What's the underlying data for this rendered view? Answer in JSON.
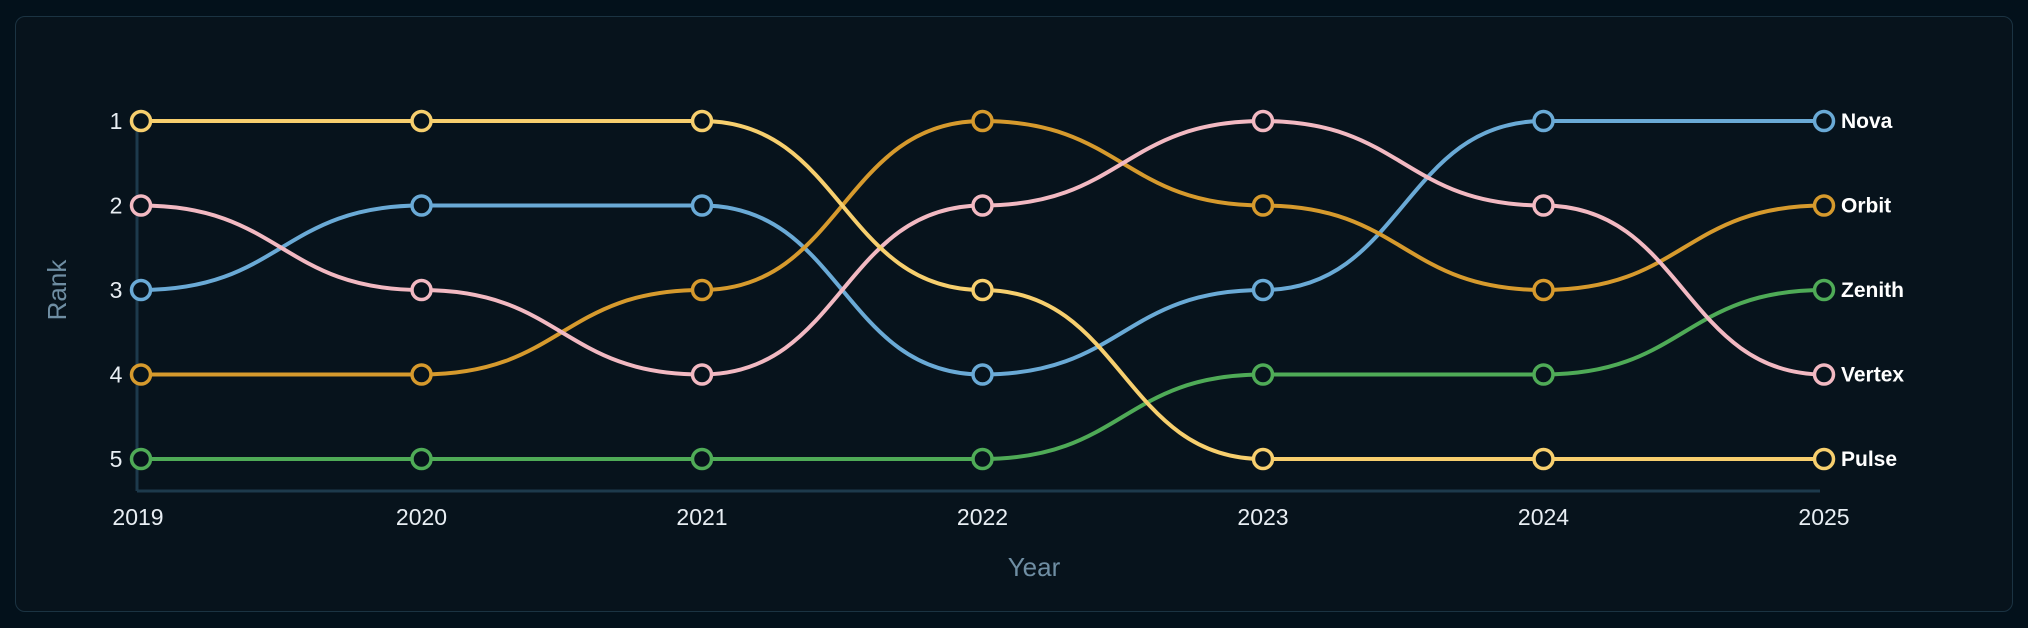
{
  "chart_data": {
    "type": "bump",
    "title": "",
    "xlabel": "Year",
    "ylabel": "Rank",
    "categories": [
      "2019",
      "2020",
      "2021",
      "2022",
      "2023",
      "2024",
      "2025"
    ],
    "y_ticks": [
      "1",
      "2",
      "3",
      "4",
      "5"
    ],
    "ylim": [
      1,
      5
    ],
    "y_inverted": true,
    "grid": false,
    "legend": "end-labels-right",
    "series": [
      {
        "name": "Nova",
        "color": "#6aaad6",
        "values": [
          3,
          2,
          2,
          4,
          3,
          1,
          1
        ]
      },
      {
        "name": "Orbit",
        "color": "#d69a2d",
        "values": [
          4,
          4,
          3,
          1,
          2,
          3,
          2
        ]
      },
      {
        "name": "Zenith",
        "color": "#4fab57",
        "values": [
          5,
          5,
          5,
          5,
          4,
          4,
          3
        ]
      },
      {
        "name": "Vertex",
        "color": "#f2b9c2",
        "values": [
          2,
          3,
          4,
          2,
          1,
          2,
          4
        ]
      },
      {
        "name": "Pulse",
        "color": "#f7cf6e",
        "values": [
          1,
          1,
          1,
          3,
          5,
          5,
          5
        ]
      }
    ]
  }
}
